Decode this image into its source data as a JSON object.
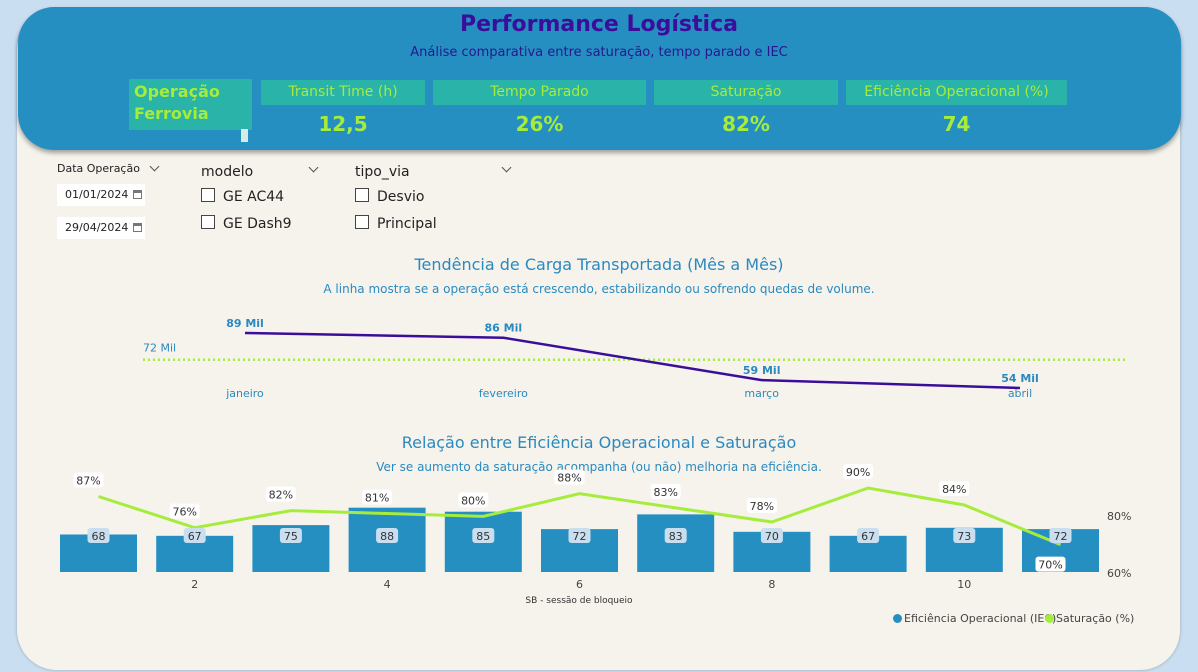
{
  "header": {
    "title": "Performance Logística",
    "subtitle": "Análise comparativa entre saturação, tempo parado e IEC",
    "operation_label": "Operação Ferrovia",
    "kpis": [
      {
        "label": "Transit Time (h)",
        "value": "12,5"
      },
      {
        "label": "Tempo Parado",
        "value": "26%"
      },
      {
        "label": "Saturação",
        "value": "82%"
      },
      {
        "label": "Eficiência Operacional (%)",
        "value": "74"
      }
    ]
  },
  "filters": {
    "date_title": "Data Operação",
    "date_start": "01/01/2024",
    "date_end": "29/04/2024",
    "modelo_title": "modelo",
    "modelo_options": [
      "GE AC44",
      "GE Dash9"
    ],
    "tipo_via_title": "tipo_via",
    "tipo_via_options": [
      "Desvio",
      "Principal"
    ]
  },
  "trend": {
    "title": "Tendência de Carga Transportada (Mês a Mês)",
    "subtitle": "A linha mostra se a operação está crescendo, estabilizando ou sofrendo quedas de volume.",
    "average_label": "72 Mil"
  },
  "combo": {
    "title": "Relação entre Eficiência Operacional e Saturação",
    "subtitle": "Ver se aumento da saturação acompanha (ou não) melhoria na eficiência.",
    "xlabel": "SB - sessão de bloqueio",
    "legend": [
      "Eficiência Operacional (IEC)",
      "Saturação (%)"
    ]
  },
  "colors": {
    "primary": "#268fc2",
    "teal": "#2ab3a8",
    "lime": "#a6ec3c",
    "purple": "#3a0e9a",
    "line_green": "#a6ec3c",
    "bar_blue": "#268fc2"
  },
  "chart_data": [
    {
      "type": "line",
      "title": "Tendência de Carga Transportada (Mês a Mês)",
      "categories": [
        "janeiro",
        "fevereiro",
        "março",
        "abril"
      ],
      "values": [
        89000,
        86000,
        59000,
        54000
      ],
      "data_labels": [
        "89 Mil",
        "86 Mil",
        "59 Mil",
        "54 Mil"
      ],
      "average_line": 72000,
      "average_label": "72 Mil",
      "ylim": [
        40000,
        110000
      ],
      "color": "#3a0e9a",
      "average_color": "#a6ec3c",
      "grid": false
    },
    {
      "type": "bar",
      "title": "Relação entre Eficiência Operacional e Saturação",
      "xlabel": "SB - sessão de bloqueio",
      "categories": [
        1,
        2,
        3,
        4,
        5,
        6,
        7,
        8,
        9,
        10,
        11
      ],
      "x_tick_labels": [
        "2",
        "4",
        "6",
        "8",
        "10"
      ],
      "series": [
        {
          "name": "Eficiência Operacional (IEC)",
          "type": "bar",
          "values": [
            68,
            67,
            75,
            88,
            85,
            72,
            83,
            70,
            67,
            73,
            72
          ],
          "color": "#268fc2"
        },
        {
          "name": "Saturação (%)",
          "type": "line",
          "values": [
            87,
            76,
            82,
            81,
            80,
            88,
            83,
            78,
            90,
            84,
            70
          ],
          "labels": [
            "87%",
            "76%",
            "82%",
            "81%",
            "80%",
            "88%",
            "83%",
            "78%",
            "90%",
            "84%",
            "70%"
          ],
          "color": "#a6ec3c"
        }
      ],
      "y_right_ticks": [
        "80%",
        "60%"
      ],
      "legend_position": "bottom-right",
      "grid": false
    }
  ]
}
